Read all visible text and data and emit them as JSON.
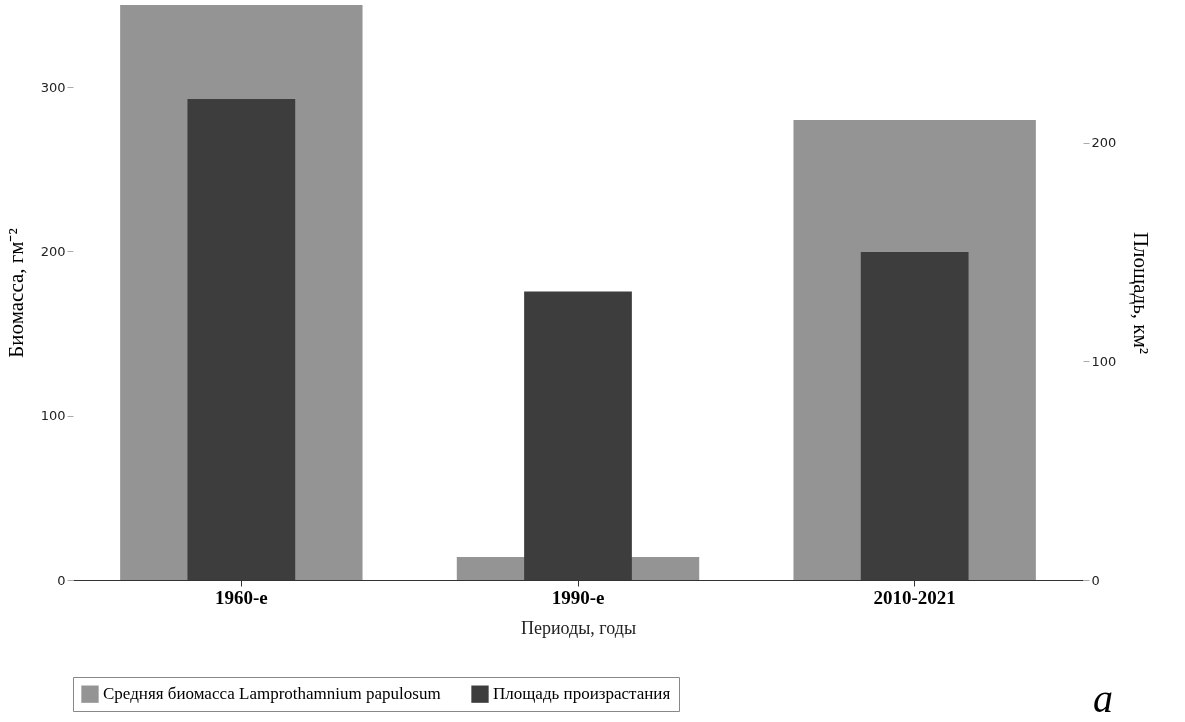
{
  "chart_data": {
    "type": "bar",
    "xlabel": "Периоды, годы",
    "ylabel": "Биомасса, гм⁻²",
    "y2label": "Площадь, км²",
    "categories": [
      "1960-е",
      "1990-е",
      "2010-2021"
    ],
    "series": [
      {
        "name": "Средняя биомасса Lamprothamnium papulosum",
        "color": "#949494",
        "values": [
          350,
          14,
          280
        ]
      },
      {
        "name": "Площадь произрастания",
        "color": "#3d3d3d",
        "values": [
          220,
          132,
          150
        ],
        "axis": "y2"
      }
    ],
    "ylim": [
      0,
      350
    ],
    "yticks": [
      0,
      100,
      200,
      300
    ],
    "y2lim": [
      0,
      263
    ],
    "y2ticks": [
      0,
      100,
      200
    ],
    "grid": false,
    "legend": "bottom",
    "annotations": [
      "а"
    ]
  }
}
